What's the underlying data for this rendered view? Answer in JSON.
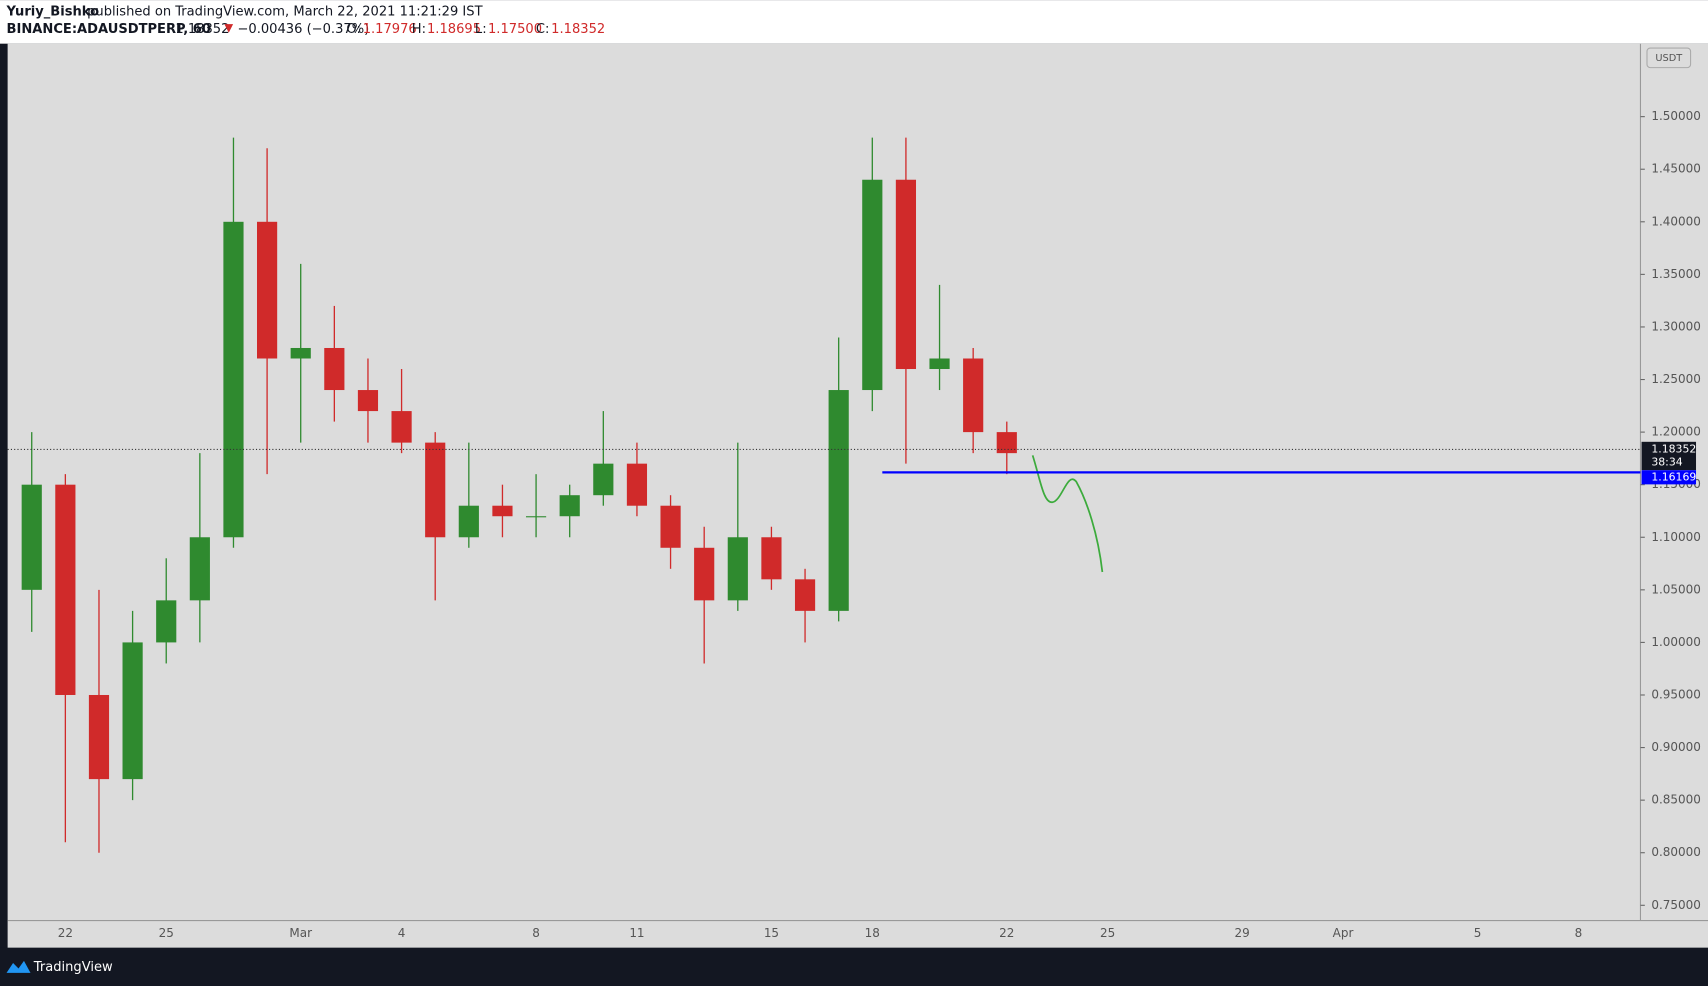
{
  "chart_data": {
    "type": "candlestick",
    "publisher": "Yuriy_Bishko",
    "published": "published on TradingView.com, March 22, 2021 11:21:29 IST",
    "symbol": "BINANCE:ADAUSDTPERP, 60",
    "last": "1.18352",
    "change": "−0.00436 (−0.37%)",
    "o_label": "O:",
    "open_text": "1.17976",
    "h_label": "H:",
    "high_text": "1.18695",
    "l_label": "L:",
    "low_text": "1.17500",
    "c_label": "C:",
    "close_text": "1.18352",
    "currency": "USDT",
    "brand": "TradingView",
    "countdown": "38:34",
    "current_price": 1.18352,
    "price_line": {
      "value": 1.16169,
      "color": "#0000ff"
    },
    "up_color": "#2f8a2f",
    "down_color": "#d02a2a",
    "categories": [
      null,
      "22",
      null,
      null,
      "25",
      null,
      null,
      null,
      "Mar",
      null,
      null,
      "4",
      null,
      null,
      null,
      "8",
      null,
      null,
      "11",
      null,
      null,
      null,
      "15",
      null,
      null,
      "18",
      null,
      null,
      null,
      "22",
      null,
      null,
      "25",
      null,
      null,
      null,
      "29",
      null,
      null,
      "Apr",
      null,
      null,
      null,
      "5",
      null,
      null,
      "8",
      null
    ],
    "open": [
      1.05,
      1.15,
      0.95,
      0.87,
      1.0,
      1.04,
      1.1,
      1.4,
      1.27,
      1.28,
      1.24,
      1.22,
      1.19,
      1.1,
      1.13,
      1.12,
      1.12,
      1.14,
      1.17,
      1.13,
      1.09,
      1.04,
      1.1,
      1.06,
      1.03,
      1.24,
      1.44,
      1.26,
      1.27,
      1.2,
      null,
      null,
      null,
      null,
      null,
      null,
      null,
      null,
      null,
      null,
      null,
      null,
      null,
      null,
      null,
      null,
      null,
      null
    ],
    "high": [
      1.2,
      1.16,
      1.05,
      1.03,
      1.08,
      1.18,
      1.48,
      1.47,
      1.36,
      1.32,
      1.27,
      1.26,
      1.2,
      1.19,
      1.15,
      1.16,
      1.15,
      1.22,
      1.19,
      1.14,
      1.11,
      1.19,
      1.11,
      1.07,
      1.29,
      1.48,
      1.48,
      1.34,
      1.28,
      1.21,
      null,
      null,
      null,
      null,
      null,
      null,
      null,
      null,
      null,
      null,
      null,
      null,
      null,
      null,
      null,
      null,
      null,
      null
    ],
    "low": [
      1.01,
      0.81,
      0.8,
      0.85,
      0.98,
      1.0,
      1.09,
      1.16,
      1.19,
      1.21,
      1.19,
      1.18,
      1.04,
      1.09,
      1.1,
      1.1,
      1.1,
      1.13,
      1.12,
      1.07,
      0.98,
      1.03,
      1.05,
      1.0,
      1.02,
      1.22,
      1.17,
      1.24,
      1.18,
      1.16,
      null,
      null,
      null,
      null,
      null,
      null,
      null,
      null,
      null,
      null,
      null,
      null,
      null,
      null,
      null,
      null,
      null,
      null
    ],
    "close": [
      1.15,
      0.95,
      0.87,
      1.0,
      1.04,
      1.1,
      1.4,
      1.27,
      1.28,
      1.24,
      1.22,
      1.19,
      1.1,
      1.13,
      1.12,
      1.12,
      1.14,
      1.17,
      1.13,
      1.09,
      1.04,
      1.1,
      1.06,
      1.03,
      1.24,
      1.44,
      1.26,
      1.27,
      1.2,
      1.18,
      null,
      null,
      null,
      null,
      null,
      null,
      null,
      null,
      null,
      null,
      null,
      null,
      null,
      null,
      null,
      null,
      null,
      null
    ],
    "ylim": [
      0.7355,
      1.5694
    ],
    "yticks": [
      {
        "value": 0.75,
        "label": "0.75000"
      },
      {
        "value": 0.8,
        "label": "0.80000"
      },
      {
        "value": 0.85,
        "label": "0.85000"
      },
      {
        "value": 0.9,
        "label": "0.90000"
      },
      {
        "value": 0.95,
        "label": "0.95000"
      },
      {
        "value": 1.0,
        "label": "1.00000"
      },
      {
        "value": 1.05,
        "label": "1.05000"
      },
      {
        "value": 1.1,
        "label": "1.10000"
      },
      {
        "value": 1.15,
        "label": "1.15000"
      },
      {
        "value": 1.2,
        "label": "1.20000"
      },
      {
        "value": 1.25,
        "label": "1.25000"
      },
      {
        "value": 1.3,
        "label": "1.30000"
      },
      {
        "value": 1.35,
        "label": "1.35000"
      },
      {
        "value": 1.4,
        "label": "1.40000"
      },
      {
        "value": 1.45,
        "label": "1.45000"
      },
      {
        "value": 1.5,
        "label": "1.50000"
      }
    ]
  }
}
